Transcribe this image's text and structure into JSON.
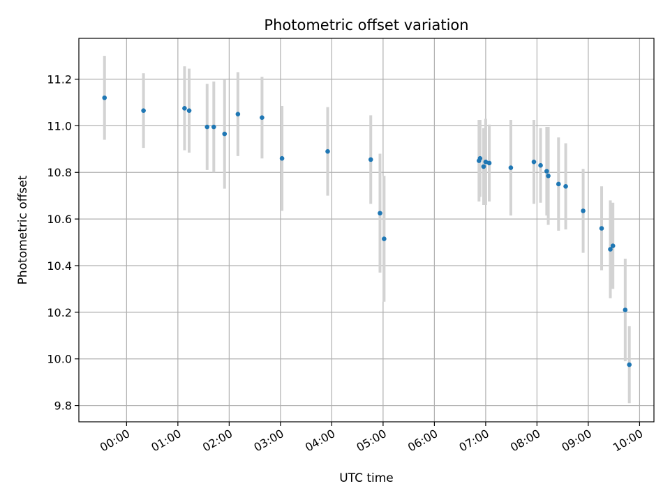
{
  "chart_data": {
    "type": "scatter",
    "title": "Photometric offset variation",
    "xlabel": "UTC time",
    "ylabel": "Photometric offset",
    "x_unit": "hours UTC",
    "xlim": [
      -0.93,
      10.28
    ],
    "ylim": [
      9.73,
      11.375
    ],
    "x_ticks": [
      {
        "value": 0,
        "label": "00:00"
      },
      {
        "value": 1,
        "label": "01:00"
      },
      {
        "value": 2,
        "label": "02:00"
      },
      {
        "value": 3,
        "label": "03:00"
      },
      {
        "value": 4,
        "label": "04:00"
      },
      {
        "value": 5,
        "label": "05:00"
      },
      {
        "value": 6,
        "label": "06:00"
      },
      {
        "value": 7,
        "label": "07:00"
      },
      {
        "value": 8,
        "label": "08:00"
      },
      {
        "value": 9,
        "label": "09:00"
      },
      {
        "value": 10,
        "label": "10:00"
      }
    ],
    "y_ticks": [
      {
        "value": 9.8,
        "label": "9.8"
      },
      {
        "value": 10.0,
        "label": "10.0"
      },
      {
        "value": 10.2,
        "label": "10.2"
      },
      {
        "value": 10.4,
        "label": "10.4"
      },
      {
        "value": 10.6,
        "label": "10.6"
      },
      {
        "value": 10.8,
        "label": "10.8"
      },
      {
        "value": 11.0,
        "label": "11.0"
      },
      {
        "value": 11.2,
        "label": "11.2"
      }
    ],
    "grid": true,
    "marker_color": "#1f77b4",
    "errorbar_color": "#d3d3d3",
    "points": [
      {
        "x": -0.43,
        "y": 11.12,
        "err": 0.18
      },
      {
        "x": 0.33,
        "y": 11.065,
        "err": 0.16
      },
      {
        "x": 1.13,
        "y": 11.075,
        "err": 0.18
      },
      {
        "x": 1.22,
        "y": 11.065,
        "err": 0.18
      },
      {
        "x": 1.57,
        "y": 10.995,
        "err": 0.185
      },
      {
        "x": 1.7,
        "y": 10.995,
        "err": 0.195
      },
      {
        "x": 1.91,
        "y": 10.965,
        "err": 0.235
      },
      {
        "x": 2.17,
        "y": 11.05,
        "err": 0.18
      },
      {
        "x": 2.64,
        "y": 11.035,
        "err": 0.175
      },
      {
        "x": 3.03,
        "y": 10.86,
        "err": 0.225
      },
      {
        "x": 3.92,
        "y": 10.89,
        "err": 0.19
      },
      {
        "x": 4.76,
        "y": 10.855,
        "err": 0.19
      },
      {
        "x": 4.94,
        "y": 10.625,
        "err": 0.255
      },
      {
        "x": 5.02,
        "y": 10.515,
        "err": 0.27
      },
      {
        "x": 6.87,
        "y": 10.85,
        "err": 0.175
      },
      {
        "x": 6.89,
        "y": 10.86,
        "err": 0.165
      },
      {
        "x": 6.96,
        "y": 10.825,
        "err": 0.165
      },
      {
        "x": 7.0,
        "y": 10.845,
        "err": 0.185
      },
      {
        "x": 7.07,
        "y": 10.84,
        "err": 0.165
      },
      {
        "x": 7.49,
        "y": 10.82,
        "err": 0.205
      },
      {
        "x": 7.94,
        "y": 10.845,
        "err": 0.18
      },
      {
        "x": 8.07,
        "y": 10.83,
        "err": 0.16
      },
      {
        "x": 8.19,
        "y": 10.805,
        "err": 0.19
      },
      {
        "x": 8.22,
        "y": 10.785,
        "err": 0.21
      },
      {
        "x": 8.42,
        "y": 10.75,
        "err": 0.2
      },
      {
        "x": 8.56,
        "y": 10.74,
        "err": 0.185
      },
      {
        "x": 8.9,
        "y": 10.635,
        "err": 0.18
      },
      {
        "x": 9.26,
        "y": 10.56,
        "err": 0.18
      },
      {
        "x": 9.43,
        "y": 10.47,
        "err": 0.21
      },
      {
        "x": 9.48,
        "y": 10.485,
        "err": 0.185
      },
      {
        "x": 9.72,
        "y": 10.21,
        "err": 0.22
      },
      {
        "x": 9.8,
        "y": 9.975,
        "err": 0.165
      }
    ]
  }
}
